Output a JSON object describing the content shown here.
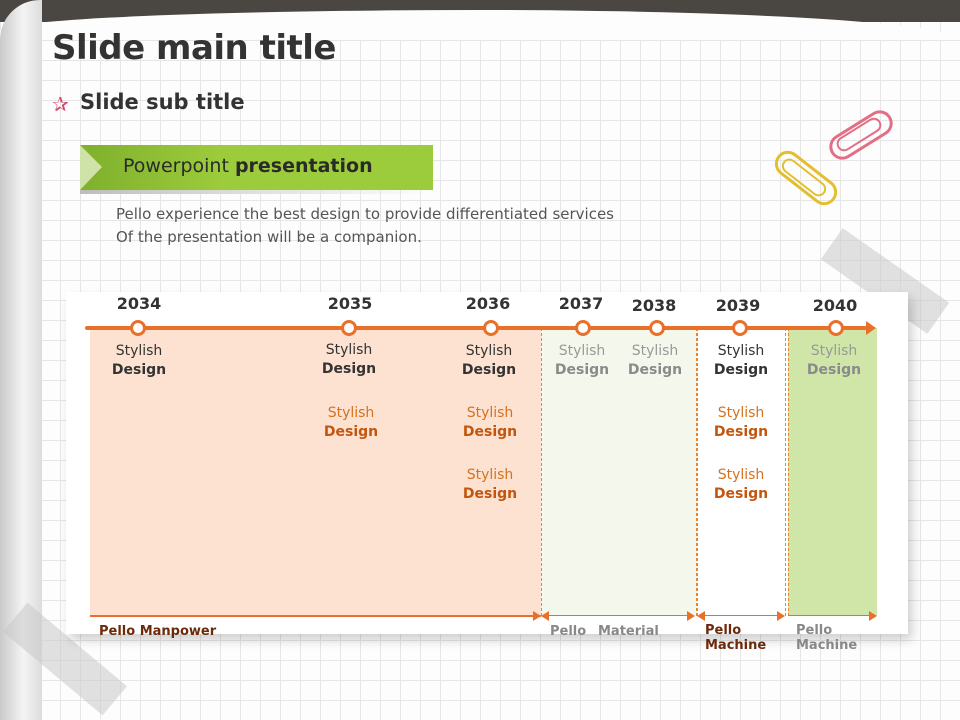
{
  "slide": {
    "title": "Slide main title",
    "subtitle": "Slide sub title"
  },
  "banner": {
    "text_regular": "Powerpoint ",
    "text_bold": "presentation"
  },
  "description": {
    "line1": "Pello experience the best design to provide differentiated services",
    "line2": "Of the presentation will be a companion."
  },
  "timeline": {
    "years": [
      "2034",
      "2035",
      "2036",
      "2037",
      "2038",
      "2039",
      "2040"
    ],
    "item_line1": "Stylish",
    "item_line2": "Design"
  },
  "categories": {
    "manpower": "Pello Manpower",
    "material_1": "Pello",
    "material_2": "Material",
    "machine_a_1": "Pello",
    "machine_a_2": "Machine",
    "machine_b_1": "Pello",
    "machine_b_2": "Machine"
  },
  "colors": {
    "accent_orange": "#e9702a",
    "banner_green": "#9ccb3b",
    "manpower_fill": "#fde2d2",
    "machine_fill": "#cfe6a8"
  },
  "icons": {
    "subtitle_bullet": "star-doodle-icon",
    "decoration": "paperclip-icon"
  }
}
